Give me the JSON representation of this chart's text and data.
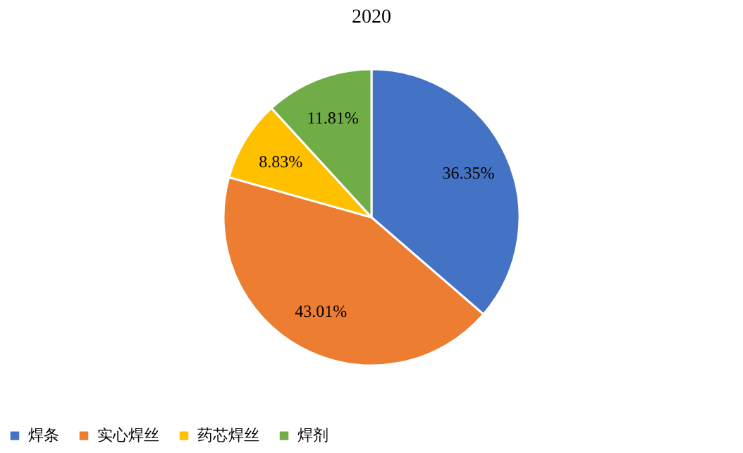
{
  "chart_data": {
    "type": "pie",
    "title": "2020",
    "categories": [
      "焊条",
      "实心焊丝",
      "药芯焊丝",
      "焊剂"
    ],
    "values": [
      36.35,
      43.01,
      8.83,
      11.81
    ],
    "colors": [
      "#4472c4",
      "#ed7d31",
      "#ffc000",
      "#70ad47"
    ],
    "value_labels": [
      "36.35%",
      "43.01%",
      "8.83%",
      "11.81%"
    ],
    "legend": "bottom"
  }
}
